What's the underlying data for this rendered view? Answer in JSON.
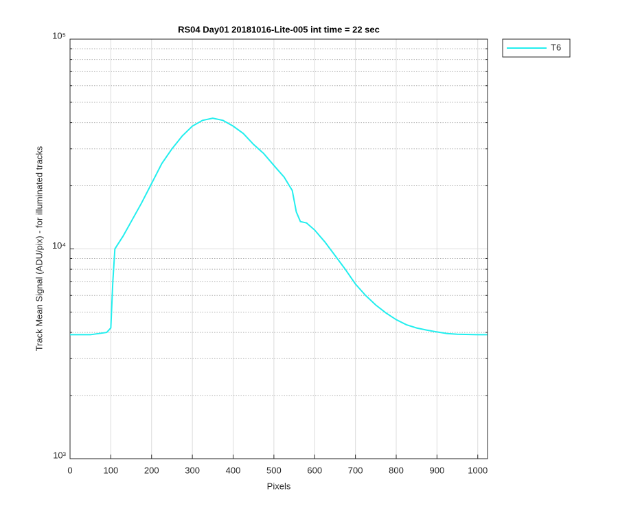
{
  "chart_data": {
    "type": "line",
    "title": "RS04 Day01 20181016-Lite-005 int time = 22 sec",
    "x_label": "Pixels",
    "y_label": "Track Mean Signal (ADU/pix) - for illuminated tracks",
    "yscale": "log",
    "grid": true,
    "minor_grid": true,
    "legend_position": "outside-top-right",
    "xlim": [
      0,
      1024
    ],
    "xticks": [
      0,
      100,
      200,
      300,
      400,
      500,
      600,
      700,
      800,
      900,
      1000
    ],
    "ylim": [
      1000,
      100000
    ],
    "yticks": [
      {
        "value": 1000,
        "label": "10³"
      },
      {
        "value": 10000,
        "label": "10⁴"
      },
      {
        "value": 100000,
        "label": "10⁵"
      }
    ],
    "yminorticks": [
      2000,
      3000,
      4000,
      5000,
      6000,
      7000,
      8000,
      9000,
      20000,
      30000,
      40000,
      50000,
      60000,
      70000,
      80000,
      90000
    ],
    "x": [
      0,
      50,
      90,
      100,
      105,
      110,
      130,
      150,
      175,
      200,
      225,
      250,
      275,
      300,
      325,
      350,
      375,
      400,
      425,
      450,
      475,
      500,
      525,
      545,
      555,
      565,
      580,
      600,
      625,
      650,
      675,
      700,
      725,
      750,
      775,
      800,
      825,
      850,
      875,
      900,
      925,
      950,
      1000,
      1023
    ],
    "series": [
      {
        "name": "T6",
        "color": "#22eeee",
        "values": [
          3900,
          3900,
          4000,
          4200,
          7000,
          10000,
          11500,
          13500,
          16500,
          20500,
          25500,
          30000,
          34500,
          38500,
          41000,
          42000,
          41000,
          38500,
          35500,
          31500,
          28500,
          25000,
          22000,
          19000,
          15000,
          13500,
          13300,
          12300,
          10800,
          9300,
          8000,
          6800,
          6000,
          5400,
          4950,
          4600,
          4350,
          4200,
          4100,
          4020,
          3950,
          3920,
          3900,
          3900
        ]
      }
    ]
  }
}
